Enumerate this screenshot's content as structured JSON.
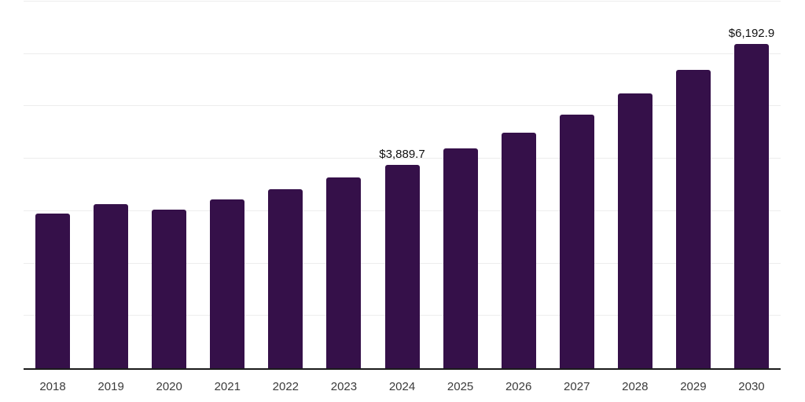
{
  "chart": {
    "background_color": "#ffffff"
  },
  "chart_data": {
    "type": "bar",
    "title": "",
    "xlabel": "",
    "ylabel": "",
    "categories": [
      "2018",
      "2019",
      "2020",
      "2021",
      "2022",
      "2023",
      "2024",
      "2025",
      "2026",
      "2027",
      "2028",
      "2029",
      "2030"
    ],
    "values": [
      2950,
      3140,
      3030,
      3225,
      3425,
      3650,
      3889.7,
      4190,
      4490,
      4845,
      5245,
      5695,
      6192.9
    ],
    "data_labels": [
      null,
      null,
      null,
      null,
      null,
      null,
      "$3,889.7",
      null,
      null,
      null,
      null,
      null,
      "$6,192.9"
    ],
    "ylim": [
      0,
      7000
    ],
    "gridline_interval": 1000,
    "grid": true,
    "legend": false,
    "bar_color": "#351049",
    "gridline_color": "#ededed",
    "axis_line_color": "#1b1b1b",
    "tick_label_color": "#3b3b3b",
    "data_label_color": "#111111"
  }
}
